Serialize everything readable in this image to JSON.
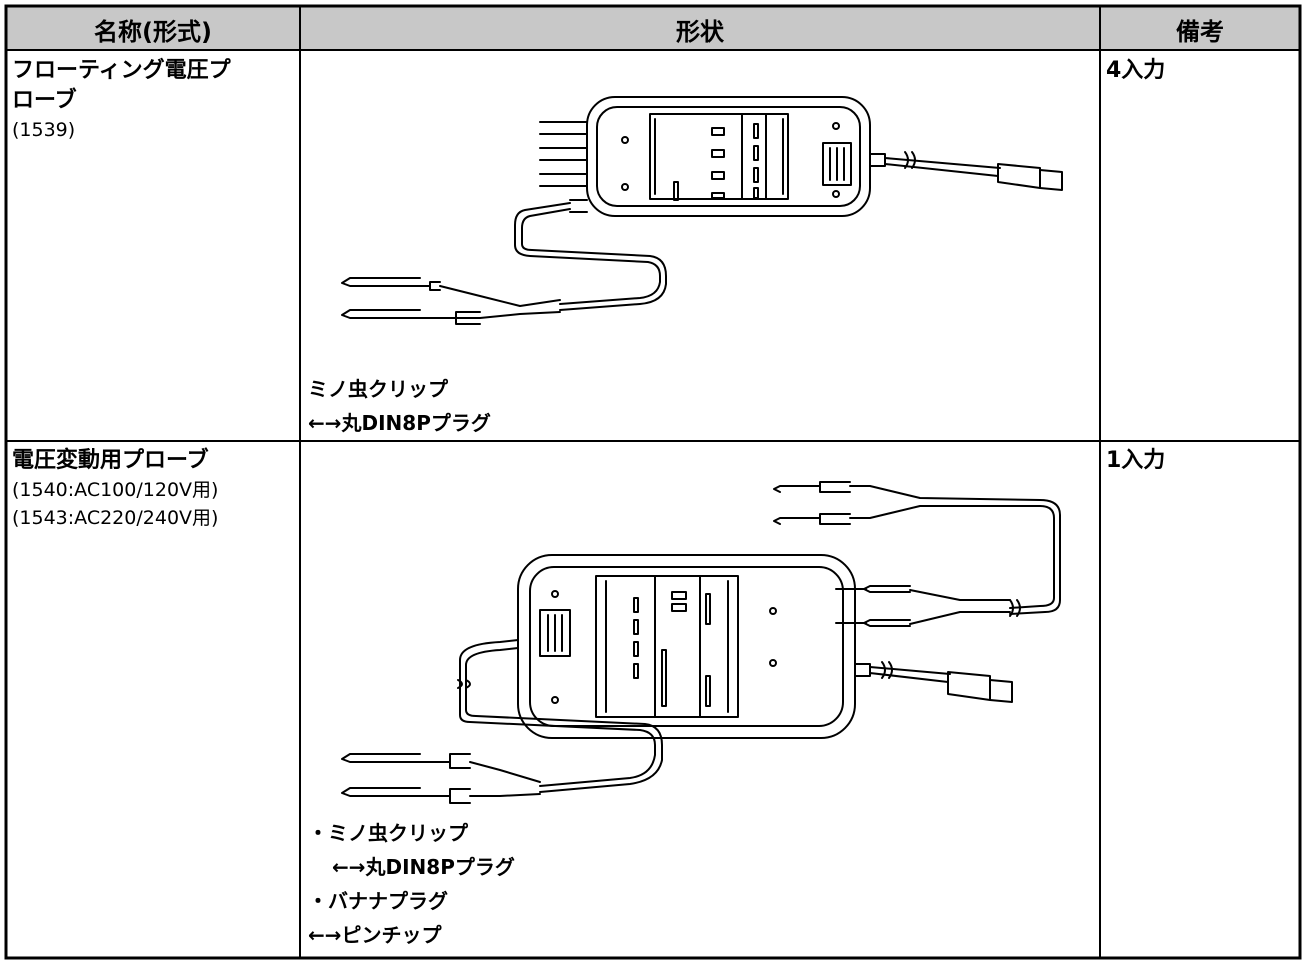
{
  "header": [
    "名称(形式)",
    "形状",
    "備考"
  ],
  "rows": [
    {
      "name_lines": [
        "フローティング電圧プ",
        "ローブ"
      ],
      "models": [
        "(1539)"
      ],
      "caption": [
        "ミノ虫クリップ",
        "←→丸DIN8Pプラグ"
      ],
      "remark": "4入力"
    },
    {
      "name_lines": [
        "電圧変動用プローブ"
      ],
      "models": [
        "(1540:AC100/120V用)",
        "(1543:AC220/240V用)"
      ],
      "caption": [
        "・ミノ虫クリップ",
        "←→丸DIN8Pプラグ",
        "・バナナプラグ",
        "←→ピンチップ"
      ],
      "remark": "1入力"
    }
  ]
}
